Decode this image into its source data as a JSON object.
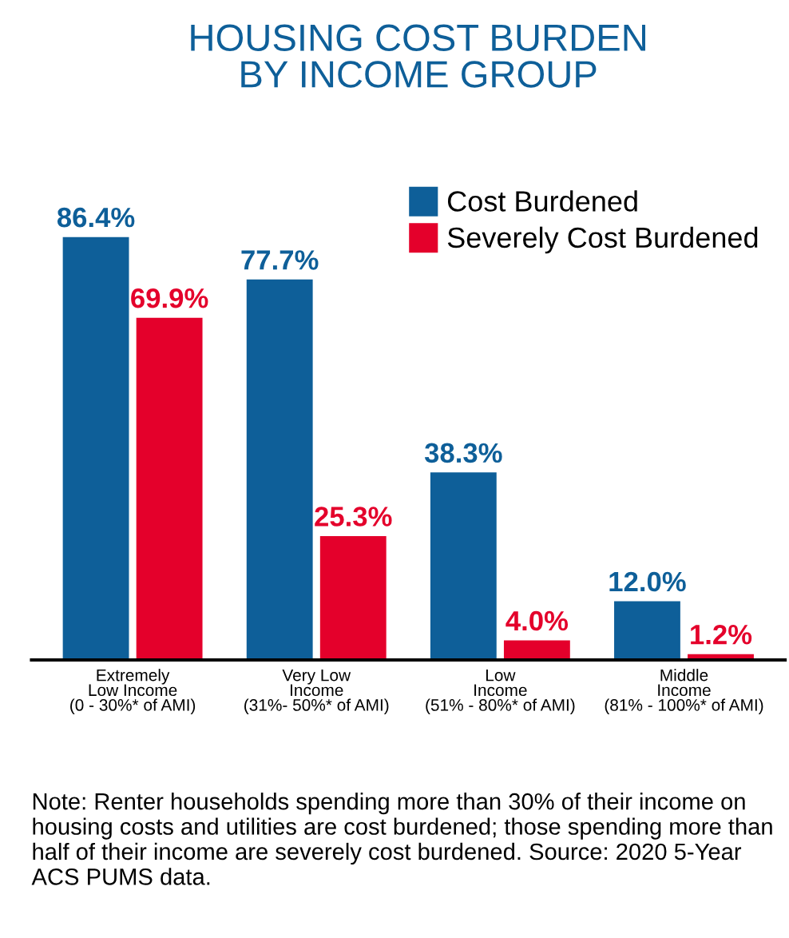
{
  "chart_data": {
    "type": "bar",
    "title": "HOUSING COST BURDEN\nBY INCOME GROUP",
    "categories": [
      "Extremely\nLow Income\n(0 - 30%* of AMI)",
      "Very Low\nIncome\n(31%- 50%* of AMI)",
      "Low\nIncome\n(51% - 80%* of AMI)",
      "Middle\nIncome\n(81% - 100%* of AMI)"
    ],
    "series": [
      {
        "name": "Cost Burdened",
        "color": "#0e5f99",
        "values": [
          86.4,
          77.7,
          38.3,
          12.0
        ],
        "value_labels": [
          "86.4%",
          "77.7%",
          "38.3%",
          "12.0%"
        ]
      },
      {
        "name": "Severely Cost Burdened",
        "color": "#e4002b",
        "values": [
          69.9,
          25.3,
          4.0,
          1.2
        ],
        "value_labels": [
          "69.9%",
          "25.3%",
          "4.0%",
          "1.2%"
        ]
      }
    ],
    "legend": "top right",
    "grid": false,
    "annotations": [
      "Note: Renter households spending more than 30% of their income on housing costs and utilities are cost burdened; those spending more than half of their income are severely cost burdened. Source: 2020 5-Year ACS PUMS data."
    ]
  }
}
